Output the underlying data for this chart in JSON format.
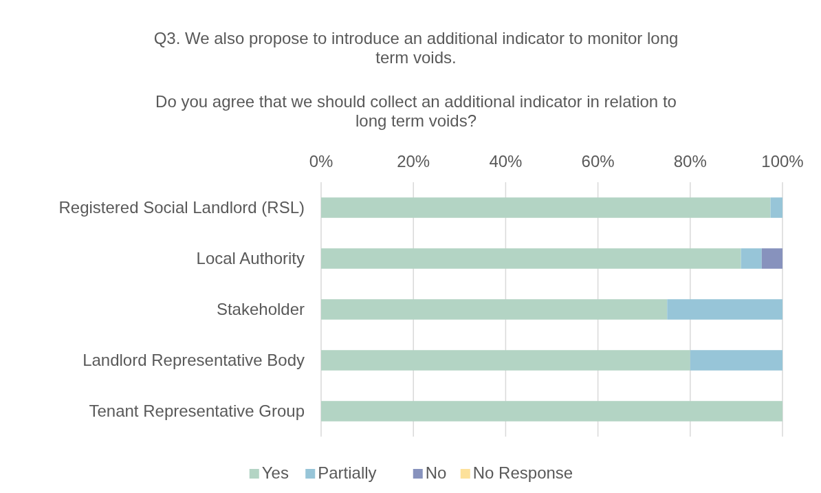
{
  "chart_data": {
    "type": "bar",
    "orientation": "horizontal",
    "stacked": true,
    "title": "Q3. We also propose to introduce an additional indicator to monitor long term voids.",
    "subtitle": "Do you agree that we should collect an additional indicator in relation to long term voids?",
    "categories": [
      "Registered Social Landlord (RSL)",
      "Local Authority",
      "Stakeholder",
      "Landlord Representative Body",
      "Tenant Representative Group"
    ],
    "series": [
      {
        "name": "Yes",
        "color": "#b3d4c4",
        "values": [
          97.4,
          91,
          75,
          80,
          100
        ]
      },
      {
        "name": "Partially",
        "color": "#97c5d8",
        "values": [
          2.6,
          4.5,
          25,
          20,
          0
        ]
      },
      {
        "name": "No",
        "color": "#8792bd",
        "values": [
          0,
          4.5,
          0,
          0,
          0
        ]
      },
      {
        "name": "No Response",
        "color": "#fde19a",
        "values": [
          0,
          0,
          0,
          0,
          0
        ]
      }
    ],
    "xlim": [
      0,
      100
    ],
    "xticks": [
      {
        "value": 0,
        "label": "0%"
      },
      {
        "value": 20,
        "label": "20%"
      },
      {
        "value": 40,
        "label": "40%"
      },
      {
        "value": 60,
        "label": "60%"
      },
      {
        "value": 80,
        "label": "80%"
      },
      {
        "value": 100,
        "label": "100%"
      }
    ],
    "grid": "x",
    "legend": "bottom"
  }
}
